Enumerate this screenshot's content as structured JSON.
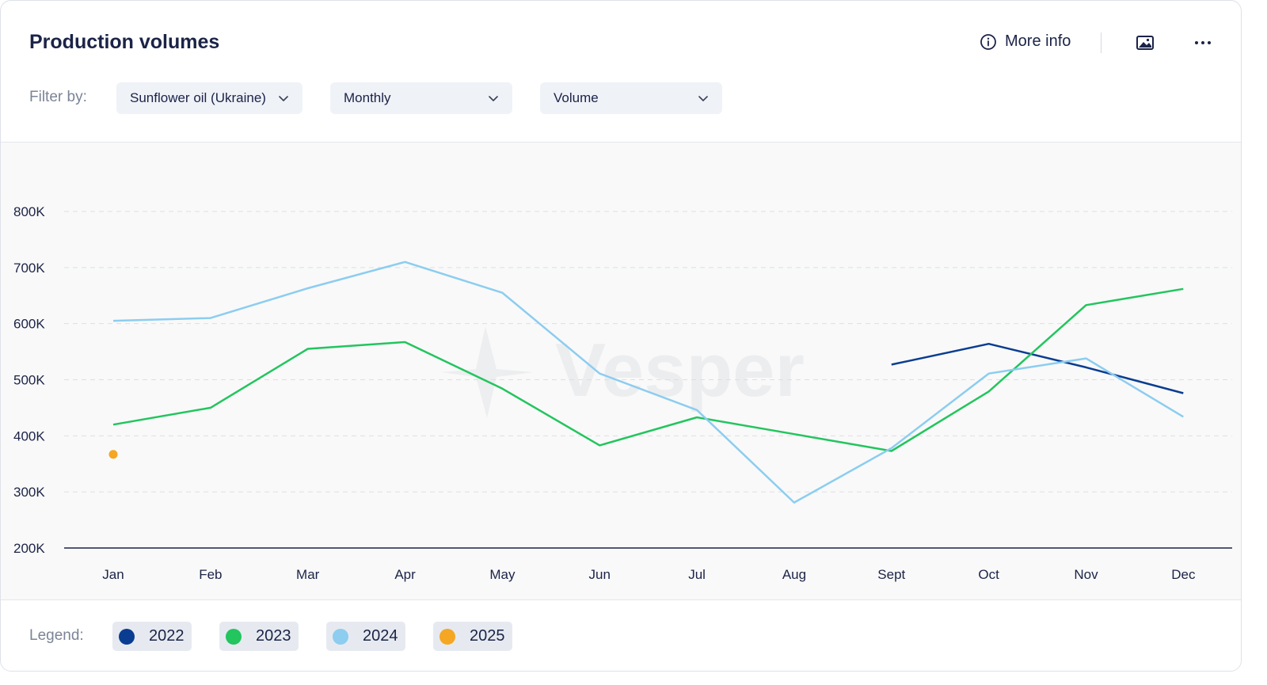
{
  "header": {
    "title": "Production volumes",
    "more_info_label": "More info",
    "icons": {
      "info": "info-circle-icon",
      "image": "image-icon",
      "more": "more-horizontal-icon"
    }
  },
  "filters": {
    "label": "Filter by:",
    "product": "Sunflower oil (Ukraine)",
    "frequency": "Monthly",
    "measure": "Volume"
  },
  "watermark": "Vesper",
  "legend": {
    "label": "Legend:",
    "items": [
      {
        "label": "2022",
        "color": "#0a3d91"
      },
      {
        "label": "2023",
        "color": "#22c55e"
      },
      {
        "label": "2024",
        "color": "#8ccdf0"
      },
      {
        "label": "2025",
        "color": "#f5a623"
      }
    ]
  },
  "chart_data": {
    "type": "line",
    "title": "",
    "xlabel": "",
    "ylabel": "",
    "categories": [
      "Jan",
      "Feb",
      "Mar",
      "Apr",
      "May",
      "Jun",
      "Jul",
      "Aug",
      "Sept",
      "Oct",
      "Nov",
      "Dec"
    ],
    "ylim": [
      200000,
      800000
    ],
    "yticks": [
      200000,
      300000,
      400000,
      500000,
      600000,
      700000,
      800000
    ],
    "ytick_labels": [
      "200K",
      "300K",
      "400K",
      "500K",
      "600K",
      "700K",
      "800K"
    ],
    "grid": true,
    "legend_position": "bottom",
    "series": [
      {
        "name": "2022",
        "color": "#0a3d91",
        "values": [
          null,
          null,
          null,
          null,
          null,
          null,
          null,
          null,
          527000,
          564000,
          522000,
          476000
        ]
      },
      {
        "name": "2023",
        "color": "#22c55e",
        "values": [
          420000,
          450000,
          555000,
          567000,
          484000,
          383000,
          433000,
          403000,
          373000,
          479000,
          633000,
          662000
        ]
      },
      {
        "name": "2024",
        "color": "#8ccdf0",
        "values": [
          605000,
          610000,
          663000,
          710000,
          655000,
          511000,
          446000,
          281000,
          378000,
          511000,
          538000,
          434000
        ]
      },
      {
        "name": "2025",
        "color": "#f5a623",
        "values": [
          367000,
          null,
          null,
          null,
          null,
          null,
          null,
          null,
          null,
          null,
          null,
          null
        ]
      }
    ]
  }
}
